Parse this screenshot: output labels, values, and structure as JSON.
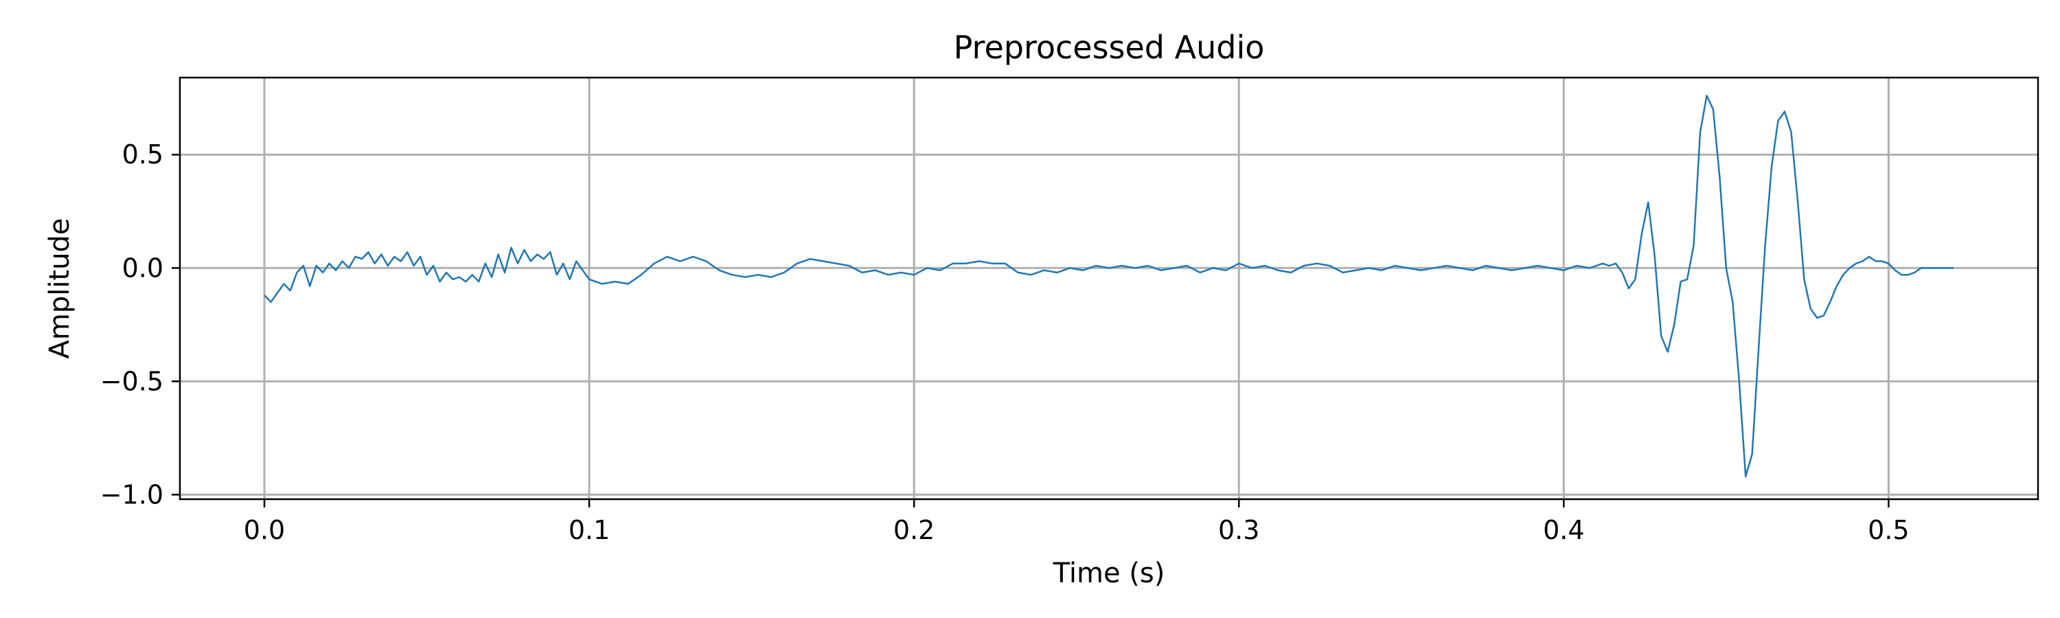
{
  "chart_data": {
    "type": "line",
    "title": "Preprocessed Audio",
    "xlabel": "Time (s)",
    "ylabel": "Amplitude",
    "xlim": [
      -0.026,
      0.546
    ],
    "ylim": [
      -1.02,
      0.84
    ],
    "x_ticks": [
      0.0,
      0.1,
      0.2,
      0.3,
      0.4,
      0.5
    ],
    "x_tick_labels": [
      "0.0",
      "0.1",
      "0.2",
      "0.3",
      "0.4",
      "0.5"
    ],
    "y_ticks": [
      0.5,
      0.0,
      -0.5,
      -1.0
    ],
    "y_tick_labels": [
      "0.5",
      "0.0",
      "−0.5",
      "−1.0"
    ],
    "grid": true,
    "series": [
      {
        "color": "#1f77b4",
        "points": [
          [
            0.0,
            -0.12
          ],
          [
            0.002,
            -0.15
          ],
          [
            0.004,
            -0.11
          ],
          [
            0.006,
            -0.07
          ],
          [
            0.008,
            -0.1
          ],
          [
            0.01,
            -0.02
          ],
          [
            0.012,
            0.01
          ],
          [
            0.014,
            -0.08
          ],
          [
            0.016,
            0.01
          ],
          [
            0.018,
            -0.02
          ],
          [
            0.02,
            0.02
          ],
          [
            0.022,
            -0.01
          ],
          [
            0.024,
            0.03
          ],
          [
            0.026,
            0.0
          ],
          [
            0.028,
            0.05
          ],
          [
            0.03,
            0.04
          ],
          [
            0.032,
            0.07
          ],
          [
            0.034,
            0.02
          ],
          [
            0.036,
            0.06
          ],
          [
            0.038,
            0.01
          ],
          [
            0.04,
            0.05
          ],
          [
            0.042,
            0.03
          ],
          [
            0.044,
            0.07
          ],
          [
            0.046,
            0.01
          ],
          [
            0.048,
            0.05
          ],
          [
            0.05,
            -0.03
          ],
          [
            0.052,
            0.01
          ],
          [
            0.054,
            -0.06
          ],
          [
            0.056,
            -0.02
          ],
          [
            0.058,
            -0.05
          ],
          [
            0.06,
            -0.04
          ],
          [
            0.062,
            -0.06
          ],
          [
            0.064,
            -0.03
          ],
          [
            0.066,
            -0.06
          ],
          [
            0.068,
            0.02
          ],
          [
            0.07,
            -0.04
          ],
          [
            0.072,
            0.06
          ],
          [
            0.074,
            -0.02
          ],
          [
            0.076,
            0.09
          ],
          [
            0.078,
            0.02
          ],
          [
            0.08,
            0.08
          ],
          [
            0.082,
            0.03
          ],
          [
            0.084,
            0.06
          ],
          [
            0.086,
            0.04
          ],
          [
            0.088,
            0.07
          ],
          [
            0.09,
            -0.03
          ],
          [
            0.092,
            0.02
          ],
          [
            0.094,
            -0.05
          ],
          [
            0.096,
            0.03
          ],
          [
            0.098,
            -0.01
          ],
          [
            0.1,
            -0.05
          ],
          [
            0.104,
            -0.07
          ],
          [
            0.108,
            -0.06
          ],
          [
            0.112,
            -0.07
          ],
          [
            0.116,
            -0.03
          ],
          [
            0.12,
            0.02
          ],
          [
            0.124,
            0.05
          ],
          [
            0.128,
            0.03
          ],
          [
            0.132,
            0.05
          ],
          [
            0.136,
            0.03
          ],
          [
            0.14,
            -0.01
          ],
          [
            0.144,
            -0.03
          ],
          [
            0.148,
            -0.04
          ],
          [
            0.152,
            -0.03
          ],
          [
            0.156,
            -0.04
          ],
          [
            0.16,
            -0.02
          ],
          [
            0.164,
            0.02
          ],
          [
            0.168,
            0.04
          ],
          [
            0.172,
            0.03
          ],
          [
            0.176,
            0.02
          ],
          [
            0.18,
            0.01
          ],
          [
            0.184,
            -0.02
          ],
          [
            0.188,
            -0.01
          ],
          [
            0.192,
            -0.03
          ],
          [
            0.196,
            -0.02
          ],
          [
            0.2,
            -0.03
          ],
          [
            0.204,
            0.0
          ],
          [
            0.208,
            -0.01
          ],
          [
            0.212,
            0.02
          ],
          [
            0.216,
            0.02
          ],
          [
            0.22,
            0.03
          ],
          [
            0.224,
            0.02
          ],
          [
            0.228,
            0.02
          ],
          [
            0.232,
            -0.02
          ],
          [
            0.236,
            -0.03
          ],
          [
            0.24,
            -0.01
          ],
          [
            0.244,
            -0.02
          ],
          [
            0.248,
            0.0
          ],
          [
            0.252,
            -0.01
          ],
          [
            0.256,
            0.01
          ],
          [
            0.26,
            0.0
          ],
          [
            0.264,
            0.01
          ],
          [
            0.268,
            0.0
          ],
          [
            0.272,
            0.01
          ],
          [
            0.276,
            -0.01
          ],
          [
            0.28,
            0.0
          ],
          [
            0.284,
            0.01
          ],
          [
            0.288,
            -0.02
          ],
          [
            0.292,
            0.0
          ],
          [
            0.296,
            -0.01
          ],
          [
            0.3,
            0.02
          ],
          [
            0.304,
            0.0
          ],
          [
            0.308,
            0.01
          ],
          [
            0.312,
            -0.01
          ],
          [
            0.316,
            -0.02
          ],
          [
            0.32,
            0.01
          ],
          [
            0.324,
            0.02
          ],
          [
            0.328,
            0.01
          ],
          [
            0.332,
            -0.02
          ],
          [
            0.336,
            -0.01
          ],
          [
            0.34,
            0.0
          ],
          [
            0.344,
            -0.01
          ],
          [
            0.348,
            0.01
          ],
          [
            0.352,
            0.0
          ],
          [
            0.356,
            -0.01
          ],
          [
            0.36,
            0.0
          ],
          [
            0.364,
            0.01
          ],
          [
            0.368,
            0.0
          ],
          [
            0.372,
            -0.01
          ],
          [
            0.376,
            0.01
          ],
          [
            0.38,
            0.0
          ],
          [
            0.384,
            -0.01
          ],
          [
            0.388,
            0.0
          ],
          [
            0.392,
            0.01
          ],
          [
            0.396,
            0.0
          ],
          [
            0.4,
            -0.01
          ],
          [
            0.404,
            0.01
          ],
          [
            0.408,
            0.0
          ],
          [
            0.412,
            0.02
          ],
          [
            0.414,
            0.01
          ],
          [
            0.416,
            0.02
          ],
          [
            0.418,
            -0.02
          ],
          [
            0.42,
            -0.09
          ],
          [
            0.422,
            -0.05
          ],
          [
            0.424,
            0.15
          ],
          [
            0.426,
            0.29
          ],
          [
            0.428,
            0.05
          ],
          [
            0.43,
            -0.3
          ],
          [
            0.432,
            -0.37
          ],
          [
            0.434,
            -0.25
          ],
          [
            0.436,
            -0.06
          ],
          [
            0.438,
            -0.05
          ],
          [
            0.44,
            0.1
          ],
          [
            0.442,
            0.6
          ],
          [
            0.444,
            0.76
          ],
          [
            0.446,
            0.7
          ],
          [
            0.448,
            0.4
          ],
          [
            0.45,
            0.0
          ],
          [
            0.452,
            -0.15
          ],
          [
            0.454,
            -0.5
          ],
          [
            0.456,
            -0.92
          ],
          [
            0.458,
            -0.82
          ],
          [
            0.46,
            -0.35
          ],
          [
            0.462,
            0.1
          ],
          [
            0.464,
            0.45
          ],
          [
            0.466,
            0.65
          ],
          [
            0.468,
            0.69
          ],
          [
            0.47,
            0.6
          ],
          [
            0.472,
            0.3
          ],
          [
            0.474,
            -0.05
          ],
          [
            0.476,
            -0.18
          ],
          [
            0.478,
            -0.22
          ],
          [
            0.48,
            -0.21
          ],
          [
            0.482,
            -0.15
          ],
          [
            0.484,
            -0.08
          ],
          [
            0.486,
            -0.03
          ],
          [
            0.488,
            0.0
          ],
          [
            0.49,
            0.02
          ],
          [
            0.492,
            0.03
          ],
          [
            0.494,
            0.05
          ],
          [
            0.496,
            0.03
          ],
          [
            0.498,
            0.03
          ],
          [
            0.5,
            0.02
          ],
          [
            0.502,
            -0.01
          ],
          [
            0.504,
            -0.03
          ],
          [
            0.506,
            -0.03
          ],
          [
            0.508,
            -0.02
          ],
          [
            0.51,
            0.0
          ],
          [
            0.512,
            0.0
          ],
          [
            0.514,
            0.0
          ],
          [
            0.516,
            0.0
          ],
          [
            0.518,
            0.0
          ],
          [
            0.52,
            0.0
          ]
        ]
      }
    ]
  }
}
